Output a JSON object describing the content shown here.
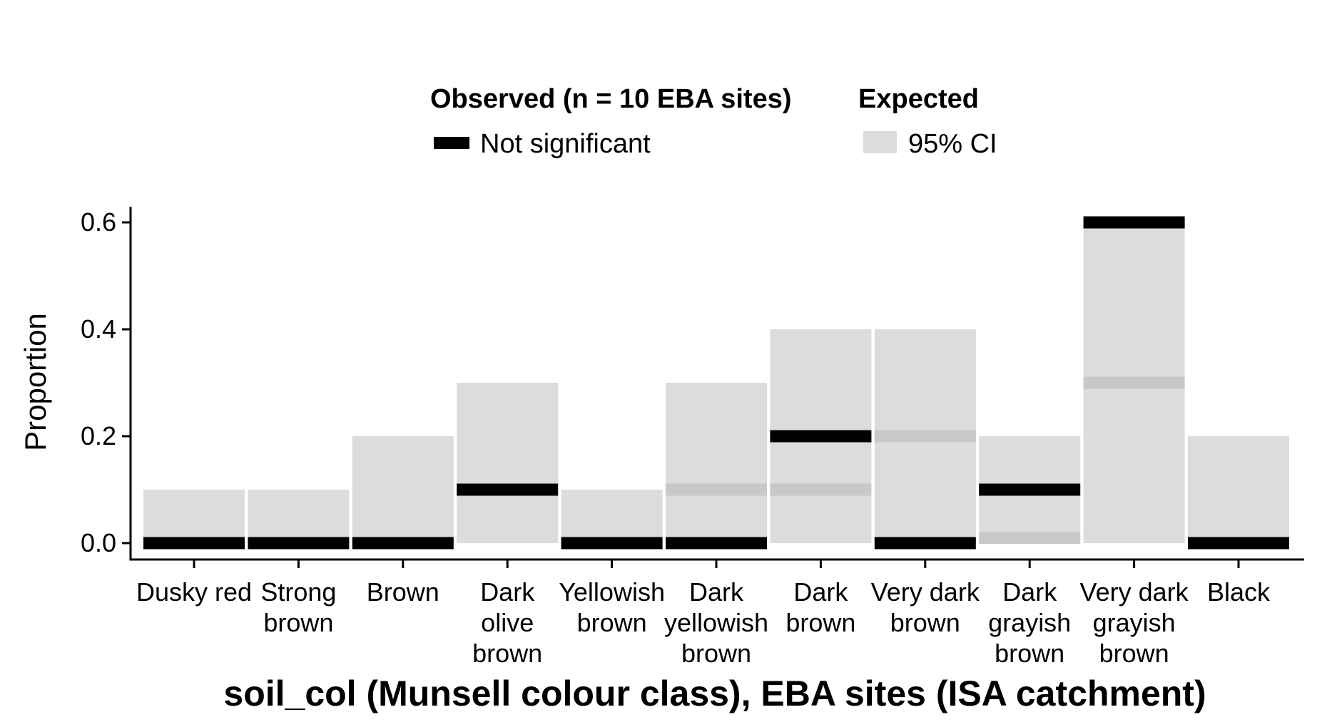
{
  "chart_data": {
    "type": "bar",
    "xlabel": "soil_col (Munsell colour class), EBA sites (ISA catchment)",
    "ylabel": "Proportion",
    "ylim": [
      0,
      0.62
    ],
    "yticks": [
      "0.0",
      "0.2",
      "0.4",
      "0.6"
    ],
    "ytick_values": [
      0,
      0.2,
      0.4,
      0.6
    ],
    "grid": false,
    "legend": {
      "placement": "top",
      "observed_title": "Observed (n = 10 EBA sites)",
      "observed_item": "Not significant",
      "expected_title": "Expected",
      "expected_item": "95% CI"
    },
    "categories": [
      [
        "Dusky red"
      ],
      [
        "Strong",
        "brown"
      ],
      [
        "Brown"
      ],
      [
        "Dark",
        "olive",
        "brown"
      ],
      [
        "Yellowish",
        "brown"
      ],
      [
        "Dark",
        "yellowish",
        "brown"
      ],
      [
        "Dark",
        "brown"
      ],
      [
        "Very dark",
        "brown"
      ],
      [
        "Dark",
        "grayish",
        "brown"
      ],
      [
        "Very dark",
        "grayish",
        "brown"
      ],
      [
        "Black"
      ]
    ],
    "series": [
      {
        "name": "Not significant",
        "kind": "observed",
        "values": [
          0.0,
          0.0,
          0.0,
          0.1,
          0.0,
          0.0,
          0.2,
          0.0,
          0.1,
          0.6,
          0.0
        ]
      },
      {
        "name": "95% CI",
        "kind": "expected",
        "lower": [
          0.0,
          0.0,
          0.0,
          0.0,
          0.0,
          0.0,
          0.0,
          0.0,
          0.0,
          0.0,
          0.0
        ],
        "upper": [
          0.1,
          0.1,
          0.2,
          0.3,
          0.1,
          0.3,
          0.4,
          0.4,
          0.2,
          0.6,
          0.2
        ],
        "median": [
          null,
          null,
          null,
          null,
          null,
          0.1,
          0.1,
          0.2,
          0.01,
          0.3,
          null
        ]
      }
    ],
    "colors": {
      "observed": "#000000",
      "ci": "#dcdcdc",
      "median": "#c8c8c8",
      "axis": "#000000"
    }
  }
}
